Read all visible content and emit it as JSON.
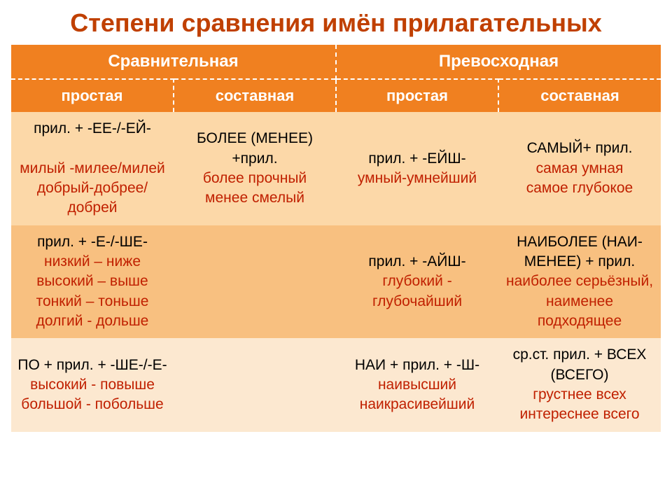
{
  "title": {
    "text": "Степени сравнения имён прилагательных",
    "color": "#c04000",
    "fontsize": 36
  },
  "colors": {
    "header_top_bg": "#f08020",
    "header_sub_bg": "#f08020",
    "row1_bg": "#fcd8a8",
    "row2_bg": "#f8c080",
    "row3_bg": "#fce8d0",
    "black": "#000000",
    "accent": "#c02000",
    "dash": "#ffffff"
  },
  "headers": {
    "group1": "Сравнительная",
    "group2": "Превосходная",
    "sub": [
      "простая",
      "составная",
      "простая",
      "составная"
    ]
  },
  "rows": [
    {
      "cells": [
        {
          "black": "прил. + -ЕЕ-/-ЕЙ-",
          "spacer": " ",
          "red": "милый -милее/милей\nдобрый-добрее/добрей"
        },
        {
          "black": "БОЛЕЕ (МЕНЕЕ) +прил.",
          "red": "более прочный\nменее смелый"
        },
        {
          "black": "прил. + -ЕЙШ-",
          "red": "умный-умнейший"
        },
        {
          "black": "САМЫЙ+ прил.",
          "red": "самая умная\nсамое глубокое"
        }
      ]
    },
    {
      "cells": [
        {
          "black": "прил. + -Е-/-ШЕ-",
          "red": "низкий – ниже\nвысокий – выше\nтонкий – тоньше\nдолгий - дольше"
        },
        {
          "black": "",
          "red": ""
        },
        {
          "black": "прил. + -АЙШ-",
          "red": "глубокий -\nглубочайший"
        },
        {
          "black": "НАИБОЛЕЕ (НАИ-МЕНЕЕ) + прил.",
          "red": "наиболее серьёзный,\nнаименее подходящее"
        }
      ]
    },
    {
      "cells": [
        {
          "black": "ПО + прил. + -ШЕ-/-Е-",
          "red": "высокий - повыше\nбольшой - побольше"
        },
        {
          "black": "",
          "red": ""
        },
        {
          "black": "НАИ + прил. + -Ш-",
          "red": "наивысший\nнаикрасивейший"
        },
        {
          "black": "ср.ст. прил. + ВСЕХ (ВСЕГО)",
          "red": "грустнее всех\nинтереснее всего"
        }
      ]
    }
  ]
}
